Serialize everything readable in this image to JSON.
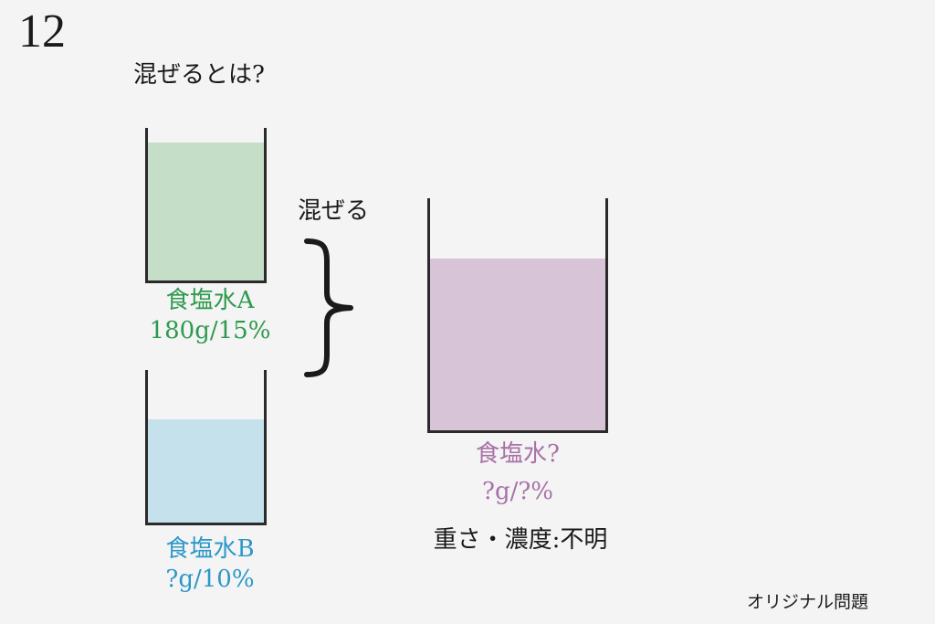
{
  "problem_number": "12",
  "question": "混ぜるとは?",
  "mix_label": "混ぜる",
  "solution_a": {
    "name": "食塩水A",
    "amount": "180g/15%",
    "color": "#2e9a4f",
    "liquid_color": "#c5dec7"
  },
  "solution_b": {
    "name": "食塩水B",
    "amount": "?g/10%",
    "color": "#2d98c8",
    "liquid_color": "#c5e1ec"
  },
  "mixture": {
    "name": "食塩水?",
    "amount": "?g/?%",
    "color": "#a872a8",
    "liquid_color": "#d7c4d6"
  },
  "unknown_note": "重さ・濃度:不明",
  "footer": "オリジナル問題"
}
